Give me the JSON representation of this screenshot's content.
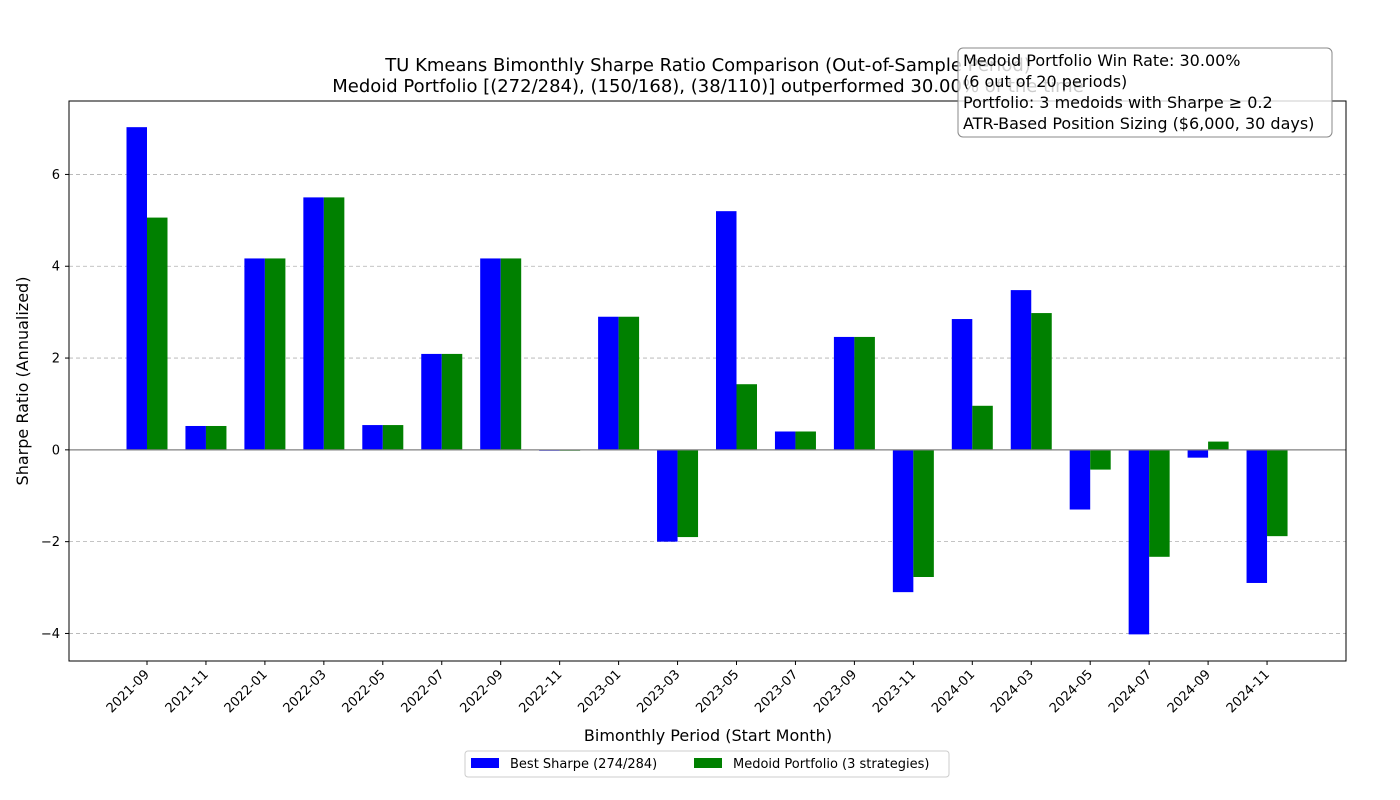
{
  "chart_data": {
    "type": "bar",
    "title_lines": [
      "TU Kmeans Bimonthly Sharpe Ratio Comparison (Out-of-Sample Period)",
      "Medoid Portfolio [(272/284), (150/168), (38/110)] outperformed 30.00% of the time"
    ],
    "xlabel": "Bimonthly Period (Start Month)",
    "ylabel": "Sharpe Ratio (Annualized)",
    "categories": [
      "2021-09",
      "2021-11",
      "2022-01",
      "2022-03",
      "2022-05",
      "2022-07",
      "2022-09",
      "2022-11",
      "2023-01",
      "2023-03",
      "2023-05",
      "2023-07",
      "2023-09",
      "2023-11",
      "2024-01",
      "2024-03",
      "2024-05",
      "2024-07",
      "2024-09",
      "2024-11"
    ],
    "series": [
      {
        "name": "Best Sharpe (274/284)",
        "color": "#0000ff",
        "values": [
          7.03,
          0.52,
          4.17,
          5.5,
          0.54,
          2.09,
          4.17,
          -0.02,
          2.9,
          -2.0,
          5.2,
          0.4,
          2.46,
          -3.1,
          2.85,
          3.48,
          -1.3,
          -4.02,
          -0.17,
          -2.9
        ]
      },
      {
        "name": "Medoid Portfolio (3 strategies)",
        "color": "#008000",
        "values": [
          5.06,
          0.52,
          4.17,
          5.5,
          0.54,
          2.09,
          4.17,
          -0.02,
          2.9,
          -1.9,
          1.43,
          0.4,
          2.46,
          -2.77,
          0.96,
          2.98,
          -0.43,
          -2.33,
          0.18,
          -1.88
        ]
      }
    ],
    "ylim": [
      -4.6,
      7.6
    ],
    "yticks": [
      -4,
      -2,
      0,
      2,
      4,
      6
    ],
    "ytick_labels": [
      "−4",
      "−2",
      "0",
      "2",
      "4",
      "6"
    ],
    "grid": "horizontal dashed",
    "legend_position": "bottom-center",
    "annotation_lines": [
      "Medoid Portfolio Win Rate: 30.00%",
      "(6 out of 20 periods)",
      "Portfolio: 3 medoids with Sharpe ≥ 0.2",
      "ATR-Based Position Sizing ($6,000, 30 days)"
    ]
  }
}
